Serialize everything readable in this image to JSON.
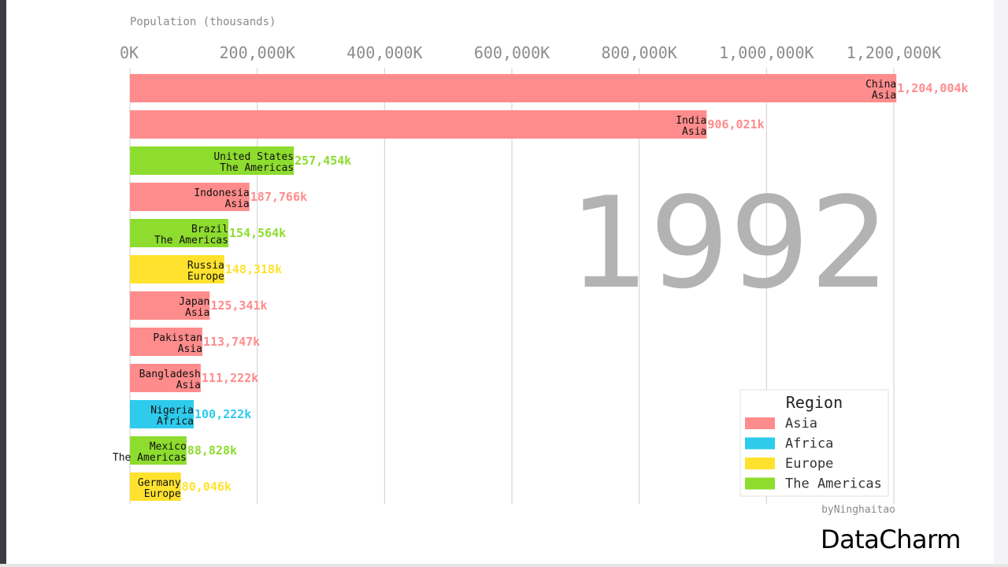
{
  "chart_data": {
    "type": "bar",
    "orientation": "horizontal",
    "ylabel": "Population (thousands)",
    "year": "1992",
    "xlim": [
      0,
      1250000
    ],
    "x_ticks": [
      0,
      200000,
      400000,
      600000,
      800000,
      1000000,
      1200000
    ],
    "x_tick_labels": [
      "0K",
      "200,000K",
      "400,000K",
      "600,000K",
      "800,000K",
      "1,000,000K",
      "1,200,000K"
    ],
    "grid": true,
    "legend_position": "bottom-right",
    "bars": [
      {
        "country": "China",
        "region": "Asia",
        "value": 1204004,
        "value_label": "1,204,004k"
      },
      {
        "country": "India",
        "region": "Asia",
        "value": 906021,
        "value_label": "906,021k"
      },
      {
        "country": "United States",
        "region": "The Americas",
        "value": 257454,
        "value_label": "257,454k"
      },
      {
        "country": "Indonesia",
        "region": "Asia",
        "value": 187766,
        "value_label": "187,766k"
      },
      {
        "country": "Brazil",
        "region": "The Americas",
        "value": 154564,
        "value_label": "154,564k"
      },
      {
        "country": "Russia",
        "region": "Europe",
        "value": 148318,
        "value_label": "148,318k"
      },
      {
        "country": "Japan",
        "region": "Asia",
        "value": 125341,
        "value_label": "125,341k"
      },
      {
        "country": "Pakistan",
        "region": "Asia",
        "value": 113747,
        "value_label": "113,747k"
      },
      {
        "country": "Bangladesh",
        "region": "Asia",
        "value": 111222,
        "value_label": "111,222k"
      },
      {
        "country": "Nigeria",
        "region": "Africa",
        "value": 100222,
        "value_label": "100,222k"
      },
      {
        "country": "Mexico",
        "region": "The Americas",
        "value": 88828,
        "value_label": "88,828k"
      },
      {
        "country": "Germany",
        "region": "Europe",
        "value": 80046,
        "value_label": "80,046k"
      }
    ],
    "legend": {
      "title": "Region",
      "entries": [
        {
          "name": "Asia",
          "color": "#ff8c8c"
        },
        {
          "name": "Africa",
          "color": "#2ecbec"
        },
        {
          "name": "Europe",
          "color": "#ffe22e"
        },
        {
          "name": "The Americas",
          "color": "#8ddc2e"
        }
      ]
    },
    "colors": {
      "Asia": "#ff8c8c",
      "Africa": "#2ecbec",
      "Europe": "#ffe22e",
      "The Americas": "#8ddc2e"
    },
    "credit": "byNinghaitao"
  },
  "brand": "DataCharm"
}
